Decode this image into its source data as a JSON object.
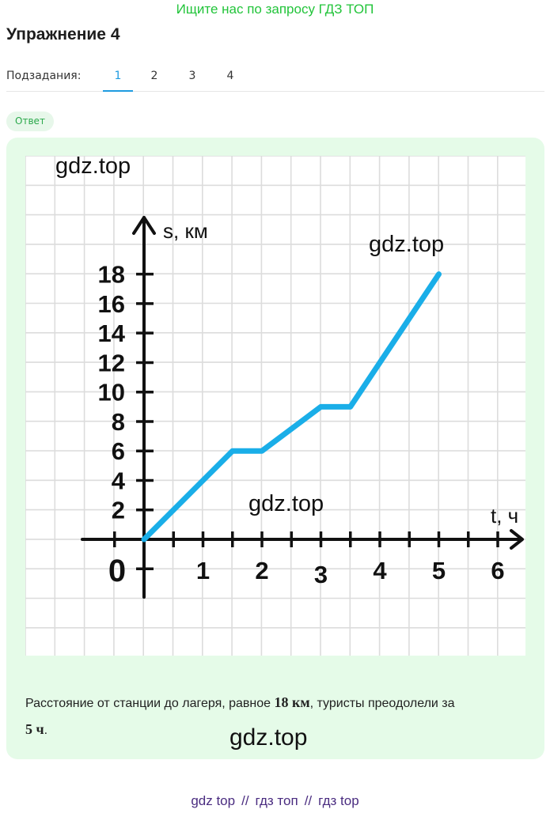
{
  "banner": "Ищите нас по запросу ГДЗ ТОП",
  "title": "Упражнение 4",
  "subtasks": {
    "label": "Подзадания:",
    "tabs": [
      "1",
      "2",
      "3",
      "4"
    ],
    "active": "1"
  },
  "answer_badge": "Ответ",
  "watermarks": [
    "gdz.top",
    "gdz.top",
    "gdz.top",
    "gdz.top"
  ],
  "chart_data": {
    "type": "line",
    "xlabel": "t, ч",
    "ylabel": "s, км",
    "x_ticks": [
      "0",
      "1",
      "2",
      "3",
      "4",
      "5",
      "6"
    ],
    "y_ticks": [
      "2",
      "4",
      "6",
      "8",
      "10",
      "12",
      "14",
      "16",
      "18"
    ],
    "xlim": [
      0,
      6
    ],
    "ylim": [
      0,
      18
    ],
    "grid": true,
    "series": [
      {
        "x": [
          0,
          1.5,
          2,
          3,
          3.5,
          5
        ],
        "y": [
          0,
          6,
          6,
          9,
          9,
          18
        ]
      }
    ],
    "line_color": "#1aaee8"
  },
  "answer": {
    "text_before": "Расстояние от станции до лагеря, равное ",
    "distance_value": "18",
    "distance_unit": " км",
    "text_middle": ", туристы преодолели за",
    "time_value": "5",
    "time_unit": " ч",
    "text_end": "."
  },
  "footer": {
    "links": [
      "gdz top",
      "гдз топ",
      "гдз top"
    ],
    "separator": "//"
  }
}
